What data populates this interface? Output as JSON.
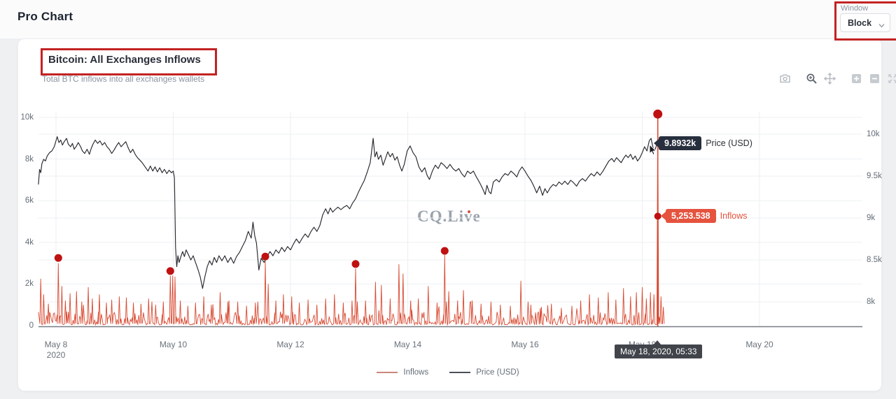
{
  "header": {
    "title": "Pro Chart"
  },
  "window_control": {
    "label": "Window",
    "value": "Block"
  },
  "chart": {
    "title": "Bitcoin: All Exchanges Inflows",
    "subtitle": "Total BTC inflows into all exchanges wallets",
    "watermark": "CQ.Live",
    "toolbar": [
      "camera-snapshot",
      "zoom",
      "pan",
      "zoom-in",
      "zoom-out",
      "autoscale"
    ],
    "tooltips": {
      "price": {
        "value": "9.8932k",
        "series": "Price (USD)"
      },
      "inflows": {
        "value": "5,253.538",
        "series": "Inflows"
      },
      "date": "May 18, 2020, 05:33"
    },
    "legend": [
      {
        "label": "Inflows",
        "color": "#c98779"
      },
      {
        "label": "Price (USD)",
        "color": "#4a4f58"
      }
    ]
  },
  "colors": {
    "inflow_line": "#d94a32",
    "price_line": "#26282d",
    "marker_dot": "#bf1111",
    "inflow_tooltip_bg": "#e5533e",
    "price_tooltip_bg": "#272f3e",
    "date_tooltip_bg": "#41454b",
    "annotation": "#c32222",
    "grid": "#edeff2",
    "axis_line": "#767c84"
  },
  "chart_data": {
    "type": "line",
    "title": "Bitcoin: All Exchanges Inflows",
    "x_axis": {
      "ticks": [
        {
          "day": 0,
          "label": "May 8",
          "sublabel": "2020"
        },
        {
          "day": 2,
          "label": "May 10"
        },
        {
          "day": 4,
          "label": "May 12"
        },
        {
          "day": 6,
          "label": "May 14"
        },
        {
          "day": 8,
          "label": "May 16"
        },
        {
          "day": 10,
          "label": "May 18"
        },
        {
          "day": 12,
          "label": "May 20"
        }
      ]
    },
    "left_axis": {
      "series": "Inflows (BTC)",
      "range": [
        0,
        10000
      ],
      "ticks": [
        {
          "label": "0",
          "value": 0
        },
        {
          "label": "2k",
          "value": 2000
        },
        {
          "label": "4k",
          "value": 4000
        },
        {
          "label": "6k",
          "value": 6000
        },
        {
          "label": "8k",
          "value": 8000
        },
        {
          "label": "10k",
          "value": 10000
        }
      ]
    },
    "right_axis": {
      "series": "Price (USD)",
      "range": [
        8000,
        10000
      ],
      "ticks": [
        {
          "label": "8k",
          "value": 8000
        },
        {
          "label": "8.5k",
          "value": 8500
        },
        {
          "label": "9k",
          "value": 9000
        },
        {
          "label": "9.5k",
          "value": 9500
        },
        {
          "label": "10k",
          "value": 10000
        }
      ]
    },
    "hover_point": {
      "day": 10.265,
      "price_usd": 9893.2,
      "inflows_btc": 5253.538,
      "datetime": "May 18, 2020, 05:33"
    },
    "marked_anomalies": [
      {
        "day": 0.04,
        "peak": 3000,
        "dot": 3250
      },
      {
        "day": 1.95,
        "peak": 2400,
        "dot": 2620
      },
      {
        "day": 3.57,
        "peak": 3100,
        "dot": 3320
      },
      {
        "day": 5.11,
        "peak": 2750,
        "dot": 2960
      },
      {
        "day": 6.63,
        "peak": 3400,
        "dot": 3590
      },
      {
        "day": 10.265,
        "peak": 10000,
        "dot": 10160
      }
    ],
    "inflow_spikes": [
      [
        -0.26,
        2250
      ],
      [
        -0.21,
        1500
      ],
      [
        -0.13,
        1050
      ],
      [
        0.1,
        1900
      ],
      [
        0.16,
        1200
      ],
      [
        0.24,
        1550
      ],
      [
        0.35,
        1650
      ],
      [
        0.44,
        1150
      ],
      [
        0.55,
        1850
      ],
      [
        0.62,
        1300
      ],
      [
        0.74,
        1500
      ],
      [
        0.86,
        1100
      ],
      [
        0.95,
        1250
      ],
      [
        1.08,
        1400
      ],
      [
        1.2,
        1350
      ],
      [
        1.32,
        1100
      ],
      [
        1.45,
        1050
      ],
      [
        1.58,
        1300
      ],
      [
        1.7,
        1000
      ],
      [
        1.83,
        1150
      ],
      [
        1.99,
        2400
      ],
      [
        2.03,
        2350
      ],
      [
        2.12,
        1200
      ],
      [
        2.25,
        950
      ],
      [
        2.38,
        1100
      ],
      [
        2.52,
        1400
      ],
      [
        2.65,
        1000
      ],
      [
        2.8,
        1600
      ],
      [
        2.95,
        1200
      ],
      [
        3.1,
        1150
      ],
      [
        3.25,
        950
      ],
      [
        3.4,
        1100
      ],
      [
        3.62,
        2000
      ],
      [
        3.75,
        1200
      ],
      [
        3.88,
        1500
      ],
      [
        4.02,
        1400
      ],
      [
        4.15,
        1100
      ],
      [
        4.3,
        1250
      ],
      [
        4.45,
        1000
      ],
      [
        4.6,
        1300
      ],
      [
        4.75,
        1500
      ],
      [
        4.9,
        1100
      ],
      [
        5.05,
        1200
      ],
      [
        5.28,
        1200
      ],
      [
        5.45,
        2100
      ],
      [
        5.55,
        1950
      ],
      [
        5.7,
        1300
      ],
      [
        5.85,
        2950
      ],
      [
        5.92,
        2500
      ],
      [
        6.05,
        1200
      ],
      [
        6.18,
        1300
      ],
      [
        6.35,
        1900
      ],
      [
        6.5,
        1100
      ],
      [
        6.7,
        1650
      ],
      [
        6.85,
        1200
      ],
      [
        6.95,
        1700
      ],
      [
        7.1,
        1200
      ],
      [
        7.25,
        1050
      ],
      [
        7.42,
        1150
      ],
      [
        7.58,
        1000
      ],
      [
        7.75,
        950
      ],
      [
        7.93,
        2150
      ],
      [
        8.1,
        1000
      ],
      [
        8.28,
        900
      ],
      [
        8.45,
        1050
      ],
      [
        8.62,
        850
      ],
      [
        8.8,
        950
      ],
      [
        8.95,
        1200
      ],
      [
        9.1,
        1500
      ],
      [
        9.25,
        1350
      ],
      [
        9.42,
        1600
      ],
      [
        9.55,
        1250
      ],
      [
        9.68,
        1800
      ],
      [
        9.8,
        1400
      ],
      [
        9.9,
        1600
      ],
      [
        10.0,
        1850
      ],
      [
        10.07,
        1300
      ],
      [
        10.14,
        1600
      ],
      [
        10.2,
        1500
      ],
      [
        10.32,
        1400
      ],
      [
        10.36,
        900
      ]
    ],
    "inflows_noise": {
      "start": -0.3,
      "end": 10.37,
      "base_min": 40,
      "base_max": 680
    },
    "price_series": [
      [
        -0.3,
        9400
      ],
      [
        -0.28,
        9580
      ],
      [
        -0.26,
        9540
      ],
      [
        -0.24,
        9650
      ],
      [
        -0.21,
        9700
      ],
      [
        -0.18,
        9680
      ],
      [
        -0.15,
        9740
      ],
      [
        -0.11,
        9780
      ],
      [
        -0.07,
        9800
      ],
      [
        -0.03,
        9850
      ],
      [
        0.02,
        9970
      ],
      [
        0.05,
        9900
      ],
      [
        0.08,
        9930
      ],
      [
        0.11,
        9870
      ],
      [
        0.14,
        9910
      ],
      [
        0.18,
        9950
      ],
      [
        0.21,
        9880
      ],
      [
        0.25,
        9850
      ],
      [
        0.28,
        9890
      ],
      [
        0.31,
        9820
      ],
      [
        0.35,
        9860
      ],
      [
        0.38,
        9900
      ],
      [
        0.42,
        9850
      ],
      [
        0.45,
        9800
      ],
      [
        0.49,
        9770
      ],
      [
        0.53,
        9820
      ],
      [
        0.57,
        9760
      ],
      [
        0.6,
        9830
      ],
      [
        0.63,
        9880
      ],
      [
        0.67,
        9930
      ],
      [
        0.71,
        9890
      ],
      [
        0.75,
        9920
      ],
      [
        0.79,
        9870
      ],
      [
        0.83,
        9900
      ],
      [
        0.87,
        9850
      ],
      [
        0.91,
        9820
      ],
      [
        0.95,
        9770
      ],
      [
        0.99,
        9810
      ],
      [
        1.03,
        9860
      ],
      [
        1.07,
        9900
      ],
      [
        1.11,
        9850
      ],
      [
        1.15,
        9880
      ],
      [
        1.19,
        9910
      ],
      [
        1.23,
        9840
      ],
      [
        1.27,
        9780
      ],
      [
        1.31,
        9820
      ],
      [
        1.35,
        9760
      ],
      [
        1.39,
        9720
      ],
      [
        1.43,
        9690
      ],
      [
        1.47,
        9660
      ],
      [
        1.52,
        9610
      ],
      [
        1.57,
        9560
      ],
      [
        1.61,
        9620
      ],
      [
        1.65,
        9560
      ],
      [
        1.69,
        9610
      ],
      [
        1.73,
        9550
      ],
      [
        1.77,
        9600
      ],
      [
        1.81,
        9540
      ],
      [
        1.85,
        9580
      ],
      [
        1.89,
        9530
      ],
      [
        1.93,
        9570
      ],
      [
        1.97,
        9540
      ],
      [
        2.0,
        9560
      ],
      [
        2.02,
        9480
      ],
      [
        2.04,
        8650
      ],
      [
        2.06,
        8420
      ],
      [
        2.08,
        8550
      ],
      [
        2.1,
        8470
      ],
      [
        2.13,
        8540
      ],
      [
        2.16,
        8600
      ],
      [
        2.19,
        8540
      ],
      [
        2.22,
        8620
      ],
      [
        2.26,
        8560
      ],
      [
        2.3,
        8500
      ],
      [
        2.34,
        8550
      ],
      [
        2.38,
        8470
      ],
      [
        2.42,
        8390
      ],
      [
        2.46,
        8300
      ],
      [
        2.5,
        8160
      ],
      [
        2.54,
        8300
      ],
      [
        2.58,
        8420
      ],
      [
        2.62,
        8490
      ],
      [
        2.66,
        8440
      ],
      [
        2.7,
        8530
      ],
      [
        2.74,
        8470
      ],
      [
        2.78,
        8550
      ],
      [
        2.83,
        8490
      ],
      [
        2.88,
        8550
      ],
      [
        2.93,
        8470
      ],
      [
        2.98,
        8530
      ],
      [
        3.03,
        8460
      ],
      [
        3.08,
        8540
      ],
      [
        3.13,
        8590
      ],
      [
        3.18,
        8660
      ],
      [
        3.23,
        8730
      ],
      [
        3.28,
        8840
      ],
      [
        3.33,
        8760
      ],
      [
        3.36,
        8950
      ],
      [
        3.39,
        8790
      ],
      [
        3.42,
        8700
      ],
      [
        3.46,
        8380
      ],
      [
        3.5,
        8520
      ],
      [
        3.55,
        8470
      ],
      [
        3.6,
        8540
      ],
      [
        3.65,
        8600
      ],
      [
        3.7,
        8550
      ],
      [
        3.75,
        8620
      ],
      [
        3.8,
        8580
      ],
      [
        3.85,
        8650
      ],
      [
        3.9,
        8600
      ],
      [
        3.95,
        8660
      ],
      [
        4.0,
        8620
      ],
      [
        4.05,
        8690
      ],
      [
        4.1,
        8750
      ],
      [
        4.15,
        8700
      ],
      [
        4.2,
        8760
      ],
      [
        4.25,
        8810
      ],
      [
        4.3,
        8770
      ],
      [
        4.35,
        8840
      ],
      [
        4.4,
        8890
      ],
      [
        4.45,
        8840
      ],
      [
        4.5,
        8910
      ],
      [
        4.55,
        9040
      ],
      [
        4.6,
        9110
      ],
      [
        4.64,
        9050
      ],
      [
        4.68,
        9120
      ],
      [
        4.72,
        9070
      ],
      [
        4.76,
        9100
      ],
      [
        4.81,
        9130
      ],
      [
        4.86,
        9100
      ],
      [
        4.91,
        9130
      ],
      [
        4.96,
        9150
      ],
      [
        5.01,
        9110
      ],
      [
        5.06,
        9180
      ],
      [
        5.11,
        9230
      ],
      [
        5.16,
        9310
      ],
      [
        5.21,
        9380
      ],
      [
        5.26,
        9450
      ],
      [
        5.31,
        9550
      ],
      [
        5.36,
        9660
      ],
      [
        5.41,
        9950
      ],
      [
        5.44,
        9730
      ],
      [
        5.47,
        9790
      ],
      [
        5.5,
        9700
      ],
      [
        5.54,
        9750
      ],
      [
        5.58,
        9630
      ],
      [
        5.62,
        9710
      ],
      [
        5.66,
        9790
      ],
      [
        5.7,
        9730
      ],
      [
        5.74,
        9770
      ],
      [
        5.78,
        9690
      ],
      [
        5.82,
        9730
      ],
      [
        5.86,
        9630
      ],
      [
        5.9,
        9560
      ],
      [
        5.94,
        9640
      ],
      [
        5.99,
        9800
      ],
      [
        6.04,
        9860
      ],
      [
        6.09,
        9780
      ],
      [
        6.14,
        9730
      ],
      [
        6.19,
        9610
      ],
      [
        6.24,
        9550
      ],
      [
        6.29,
        9600
      ],
      [
        6.33,
        9510
      ],
      [
        6.37,
        9460
      ],
      [
        6.42,
        9560
      ],
      [
        6.47,
        9630
      ],
      [
        6.52,
        9590
      ],
      [
        6.57,
        9660
      ],
      [
        6.62,
        9630
      ],
      [
        6.67,
        9590
      ],
      [
        6.72,
        9640
      ],
      [
        6.77,
        9590
      ],
      [
        6.82,
        9560
      ],
      [
        6.87,
        9590
      ],
      [
        6.92,
        9530
      ],
      [
        6.97,
        9490
      ],
      [
        7.02,
        9560
      ],
      [
        7.07,
        9530
      ],
      [
        7.12,
        9560
      ],
      [
        7.17,
        9490
      ],
      [
        7.22,
        9430
      ],
      [
        7.27,
        9360
      ],
      [
        7.32,
        9280
      ],
      [
        7.35,
        9390
      ],
      [
        7.39,
        9310
      ],
      [
        7.42,
        9290
      ],
      [
        7.46,
        9430
      ],
      [
        7.51,
        9460
      ],
      [
        7.56,
        9430
      ],
      [
        7.61,
        9490
      ],
      [
        7.66,
        9530
      ],
      [
        7.71,
        9510
      ],
      [
        7.76,
        9560
      ],
      [
        7.81,
        9530
      ],
      [
        7.86,
        9490
      ],
      [
        7.9,
        9560
      ],
      [
        7.95,
        9610
      ],
      [
        8.0,
        9560
      ],
      [
        8.05,
        9500
      ],
      [
        8.1,
        9450
      ],
      [
        8.15,
        9380
      ],
      [
        8.2,
        9300
      ],
      [
        8.25,
        9380
      ],
      [
        8.3,
        9270
      ],
      [
        8.34,
        9350
      ],
      [
        8.38,
        9300
      ],
      [
        8.43,
        9360
      ],
      [
        8.48,
        9400
      ],
      [
        8.53,
        9380
      ],
      [
        8.58,
        9430
      ],
      [
        8.63,
        9400
      ],
      [
        8.68,
        9440
      ],
      [
        8.73,
        9400
      ],
      [
        8.78,
        9450
      ],
      [
        8.83,
        9420
      ],
      [
        8.88,
        9380
      ],
      [
        8.93,
        9440
      ],
      [
        8.98,
        9470
      ],
      [
        9.03,
        9440
      ],
      [
        9.08,
        9490
      ],
      [
        9.13,
        9530
      ],
      [
        9.18,
        9500
      ],
      [
        9.23,
        9550
      ],
      [
        9.28,
        9510
      ],
      [
        9.33,
        9560
      ],
      [
        9.38,
        9620
      ],
      [
        9.43,
        9680
      ],
      [
        9.48,
        9710
      ],
      [
        9.52,
        9670
      ],
      [
        9.56,
        9720
      ],
      [
        9.6,
        9690
      ],
      [
        9.64,
        9660
      ],
      [
        9.68,
        9710
      ],
      [
        9.72,
        9750
      ],
      [
        9.76,
        9720
      ],
      [
        9.8,
        9760
      ],
      [
        9.84,
        9700
      ],
      [
        9.88,
        9740
      ],
      [
        9.92,
        9680
      ],
      [
        9.96,
        9720
      ],
      [
        10.0,
        9780
      ],
      [
        10.04,
        9850
      ],
      [
        10.08,
        9800
      ],
      [
        10.12,
        9920
      ],
      [
        10.15,
        9950
      ],
      [
        10.18,
        9850
      ],
      [
        10.21,
        9800
      ],
      [
        10.24,
        9860
      ],
      [
        10.265,
        9893.2
      ]
    ]
  }
}
